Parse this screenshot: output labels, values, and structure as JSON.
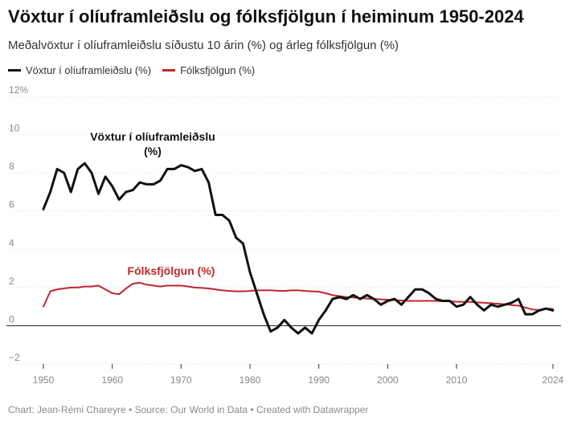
{
  "title": "Vöxtur í olíuframleiðslu og fólksfjölgun í heiminum 1950-2024",
  "subtitle": "Meðalvöxtur í olíuframleiðslu síðustu 10 árin (%) og árleg fólksfjölgun (%)",
  "footer": "Chart: Jean-Rémi Chareyre • Source: Our World in Data • Created with Datawrapper",
  "colors": {
    "oil": "#111111",
    "pop": "#c0272d",
    "grid": "#e3e3e3",
    "axis": "#333333",
    "tick": "#888888"
  },
  "chart_data": {
    "type": "line",
    "xlim": [
      1950,
      2024
    ],
    "ylim": [
      -2,
      12
    ],
    "yticks": [
      -2,
      0,
      2,
      4,
      6,
      8,
      10,
      12
    ],
    "ytick_labels": [
      "−2",
      "0",
      "2",
      "4",
      "6",
      "8",
      "10",
      "12%"
    ],
    "xticks": [
      1950,
      1960,
      1970,
      1980,
      1990,
      2000,
      2010,
      2024
    ],
    "xtick_labels": [
      "1950",
      "1960",
      "1970",
      "1980",
      "1990",
      "2000",
      "2010",
      "2024"
    ],
    "legend": [
      "Vöxtur í olíuframleiðslu (%)",
      "Fólksfjölgun (%)"
    ],
    "annotations": {
      "oil_line1": "Vöxtur í olíuframleiðslu",
      "oil_line2": "(%)",
      "pop": "Fólksfjölgun (%)"
    },
    "series": [
      {
        "name": "Vöxtur í olíuframleiðslu (%)",
        "x": [
          1950,
          1951,
          1952,
          1953,
          1954,
          1955,
          1956,
          1957,
          1958,
          1959,
          1960,
          1961,
          1962,
          1963,
          1964,
          1965,
          1966,
          1967,
          1968,
          1969,
          1970,
          1971,
          1972,
          1973,
          1974,
          1975,
          1976,
          1977,
          1978,
          1979,
          1980,
          1981,
          1982,
          1983,
          1984,
          1985,
          1986,
          1987,
          1988,
          1989,
          1990,
          1991,
          1992,
          1993,
          1994,
          1995,
          1996,
          1997,
          1998,
          1999,
          2000,
          2001,
          2002,
          2003,
          2004,
          2005,
          2006,
          2007,
          2008,
          2009,
          2010,
          2011,
          2012,
          2013,
          2014,
          2015,
          2016,
          2017,
          2018,
          2019,
          2020,
          2021,
          2022,
          2023,
          2024
        ],
        "values": [
          6.1,
          7.0,
          8.2,
          8.0,
          7.0,
          8.2,
          8.5,
          8.0,
          6.9,
          7.8,
          7.3,
          6.6,
          7.0,
          7.1,
          7.5,
          7.4,
          7.4,
          7.6,
          8.2,
          8.2,
          8.4,
          8.3,
          8.1,
          8.2,
          7.5,
          5.8,
          5.8,
          5.5,
          4.6,
          4.3,
          2.8,
          1.7,
          0.6,
          -0.3,
          -0.1,
          0.3,
          -0.1,
          -0.4,
          -0.1,
          -0.4,
          0.3,
          0.8,
          1.4,
          1.5,
          1.4,
          1.6,
          1.4,
          1.6,
          1.4,
          1.1,
          1.3,
          1.4,
          1.1,
          1.5,
          1.9,
          1.9,
          1.7,
          1.4,
          1.3,
          1.3,
          1.0,
          1.1,
          1.5,
          1.1,
          0.8,
          1.1,
          1.0,
          1.1,
          1.2,
          1.4,
          0.6,
          0.6,
          0.8,
          0.9,
          0.8
        ]
      },
      {
        "name": "Fólksfjölgun (%)",
        "x": [
          1950,
          1951,
          1952,
          1953,
          1954,
          1955,
          1956,
          1957,
          1958,
          1959,
          1960,
          1961,
          1962,
          1963,
          1964,
          1965,
          1966,
          1967,
          1968,
          1969,
          1970,
          1971,
          1972,
          1973,
          1974,
          1975,
          1976,
          1977,
          1978,
          1979,
          1980,
          1981,
          1982,
          1983,
          1984,
          1985,
          1986,
          1987,
          1988,
          1989,
          1990,
          1991,
          1992,
          1993,
          1994,
          1995,
          1996,
          1997,
          1998,
          1999,
          2000,
          2001,
          2002,
          2003,
          2004,
          2005,
          2006,
          2007,
          2008,
          2009,
          2010,
          2011,
          2012,
          2013,
          2014,
          2015,
          2016,
          2017,
          2018,
          2019,
          2020,
          2021,
          2022,
          2023,
          2024
        ],
        "values": [
          1.0,
          1.8,
          1.9,
          1.95,
          2.0,
          2.0,
          2.05,
          2.05,
          2.1,
          1.9,
          1.7,
          1.65,
          1.95,
          2.2,
          2.25,
          2.15,
          2.1,
          2.05,
          2.1,
          2.1,
          2.1,
          2.05,
          2.0,
          1.98,
          1.95,
          1.9,
          1.85,
          1.82,
          1.8,
          1.8,
          1.82,
          1.85,
          1.85,
          1.85,
          1.83,
          1.82,
          1.85,
          1.85,
          1.82,
          1.8,
          1.78,
          1.7,
          1.6,
          1.55,
          1.5,
          1.48,
          1.45,
          1.42,
          1.4,
          1.38,
          1.36,
          1.34,
          1.32,
          1.3,
          1.3,
          1.3,
          1.3,
          1.3,
          1.28,
          1.28,
          1.26,
          1.25,
          1.25,
          1.22,
          1.2,
          1.18,
          1.15,
          1.12,
          1.08,
          1.05,
          0.95,
          0.85,
          0.82,
          0.9,
          0.88
        ]
      }
    ]
  }
}
